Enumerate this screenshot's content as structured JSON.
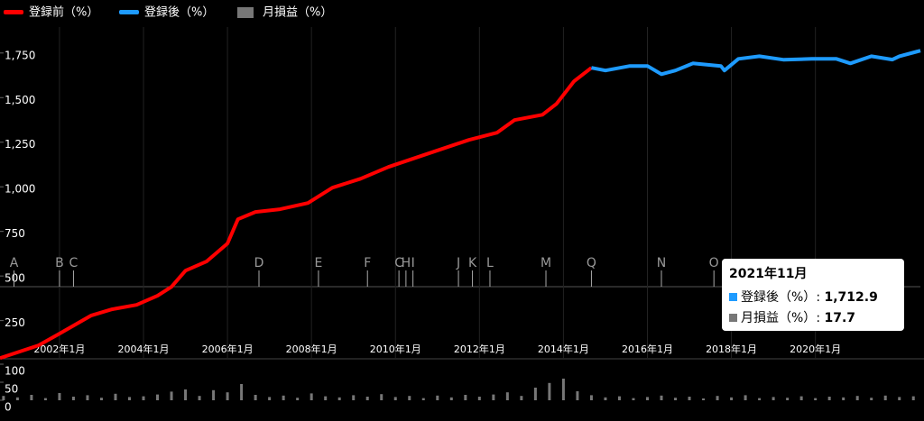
{
  "chart_data": {
    "type": "line",
    "legend": "top-left",
    "xlim": [
      "2000-08",
      "2022-07"
    ],
    "xticks": [
      {
        "value": "2002-01",
        "label": "2002年1月"
      },
      {
        "value": "2004-01",
        "label": "2004年1月"
      },
      {
        "value": "2006-01",
        "label": "2006年1月"
      },
      {
        "value": "2008-01",
        "label": "2008年1月"
      },
      {
        "value": "2010-01",
        "label": "2010年1月"
      },
      {
        "value": "2012-01",
        "label": "2012年1月"
      },
      {
        "value": "2014-01",
        "label": "2014年1月"
      },
      {
        "value": "2016-01",
        "label": "2016年1月"
      },
      {
        "value": "2018-01",
        "label": "2018年1月"
      },
      {
        "value": "2020-01",
        "label": "2020年1月"
      }
    ],
    "ylim": [
      -40,
      1850
    ],
    "yticks": [
      {
        "value": 250,
        "label": "250"
      },
      {
        "value": 500,
        "label": "500"
      },
      {
        "value": 750,
        "label": "750"
      },
      {
        "value": 1000,
        "label": "1,000"
      },
      {
        "value": 1250,
        "label": "1,250"
      },
      {
        "value": 1500,
        "label": "1,500"
      },
      {
        "value": 1750,
        "label": "1,750"
      }
    ],
    "y2lim": [
      0,
      100
    ],
    "y2ticks": [
      0,
      50,
      100
    ],
    "series": [
      {
        "name": "登録前（%）",
        "color": "#ff0000",
        "x": [
          "2000-08",
          "2001-07",
          "2002-01",
          "2002-10",
          "2003-04",
          "2003-11",
          "2004-05",
          "2004-09",
          "2005-01",
          "2005-07",
          "2006-01",
          "2006-04",
          "2006-09",
          "2007-04",
          "2007-12",
          "2008-07",
          "2009-03",
          "2009-11",
          "2010-05",
          "2010-12",
          "2011-10",
          "2012-06",
          "2012-11",
          "2013-07",
          "2013-11",
          "2014-04",
          "2014-09"
        ],
        "values": [
          40,
          111,
          177,
          278,
          313,
          338,
          389,
          439,
          530,
          581,
          682,
          818,
          859,
          874,
          909,
          995,
          1045,
          1111,
          1151,
          1197,
          1263,
          1303,
          1374,
          1404,
          1465,
          1591,
          1667
        ]
      },
      {
        "name": "登録後（%）",
        "color": "#1e9bff",
        "x": [
          "2014-09",
          "2015-01",
          "2015-08",
          "2016-01",
          "2016-05",
          "2016-09",
          "2017-02",
          "2017-10",
          "2017-11",
          "2018-03",
          "2018-09",
          "2019-04",
          "2019-12",
          "2020-07",
          "2020-11",
          "2021-05",
          "2021-11",
          "2022-01",
          "2022-07"
        ],
        "values": [
          1667,
          1652,
          1677,
          1677,
          1631,
          1652,
          1692,
          1677,
          1652,
          1717,
          1732,
          1712,
          1717,
          1717,
          1692,
          1732,
          1712.9,
          1732,
          1763
        ]
      },
      {
        "name": "月損益（%）",
        "color": "#777777",
        "type": "bar",
        "axis": "y2",
        "x": [
          "2000-09",
          "2001-01",
          "2001-05",
          "2001-09",
          "2002-01",
          "2002-05",
          "2002-09",
          "2003-01",
          "2003-05",
          "2003-09",
          "2004-01",
          "2004-05",
          "2004-09",
          "2005-01",
          "2005-05",
          "2005-09",
          "2006-01",
          "2006-05",
          "2006-09",
          "2007-01",
          "2007-05",
          "2007-09",
          "2008-01",
          "2008-05",
          "2008-09",
          "2009-01",
          "2009-05",
          "2009-09",
          "2010-01",
          "2010-05",
          "2010-09",
          "2011-01",
          "2011-05",
          "2011-09",
          "2012-01",
          "2012-05",
          "2012-09",
          "2013-01",
          "2013-05",
          "2013-09",
          "2014-01",
          "2014-05",
          "2014-09",
          "2015-01",
          "2015-05",
          "2015-09",
          "2016-01",
          "2016-05",
          "2016-09",
          "2017-01",
          "2017-05",
          "2017-09",
          "2018-01",
          "2018-05",
          "2018-09",
          "2019-01",
          "2019-05",
          "2019-09",
          "2020-01",
          "2020-05",
          "2020-09",
          "2021-01",
          "2021-05",
          "2021-09",
          "2022-01",
          "2022-05"
        ],
        "values": [
          12,
          8,
          15,
          6,
          20,
          10,
          14,
          7,
          18,
          9,
          11,
          16,
          24,
          30,
          12,
          28,
          22,
          45,
          15,
          9,
          13,
          7,
          19,
          11,
          8,
          14,
          10,
          17,
          9,
          12,
          6,
          13,
          8,
          15,
          10,
          16,
          22,
          12,
          35,
          48,
          60,
          25,
          14,
          8,
          11,
          6,
          9,
          13,
          7,
          10,
          5,
          12,
          8,
          14,
          6,
          9,
          7,
          11,
          6,
          10,
          8,
          12,
          7,
          13,
          9,
          11
        ]
      }
    ],
    "events": [
      {
        "label": "A",
        "x": "2000-12"
      },
      {
        "label": "B",
        "x": "2002-01"
      },
      {
        "label": "C",
        "x": "2002-05"
      },
      {
        "label": "D",
        "x": "2006-10"
      },
      {
        "label": "E",
        "x": "2008-03"
      },
      {
        "label": "F",
        "x": "2009-05"
      },
      {
        "label": "C",
        "x": "2010-02"
      },
      {
        "label": "H",
        "x": "2010-04"
      },
      {
        "label": "I",
        "x": "2010-06"
      },
      {
        "label": "J",
        "x": "2011-07"
      },
      {
        "label": "K",
        "x": "2011-11"
      },
      {
        "label": "L",
        "x": "2012-04"
      },
      {
        "label": "M",
        "x": "2013-08"
      },
      {
        "label": "Q",
        "x": "2014-09"
      },
      {
        "label": "N",
        "x": "2016-05"
      },
      {
        "label": "O",
        "x": "2017-08"
      }
    ],
    "tooltip": {
      "title": "2021年11月",
      "separator": ":",
      "rows": [
        {
          "name": "登録後（%）",
          "value": "1,712.9"
        },
        {
          "name": "月損益（%）",
          "value": "17.7"
        }
      ]
    }
  }
}
